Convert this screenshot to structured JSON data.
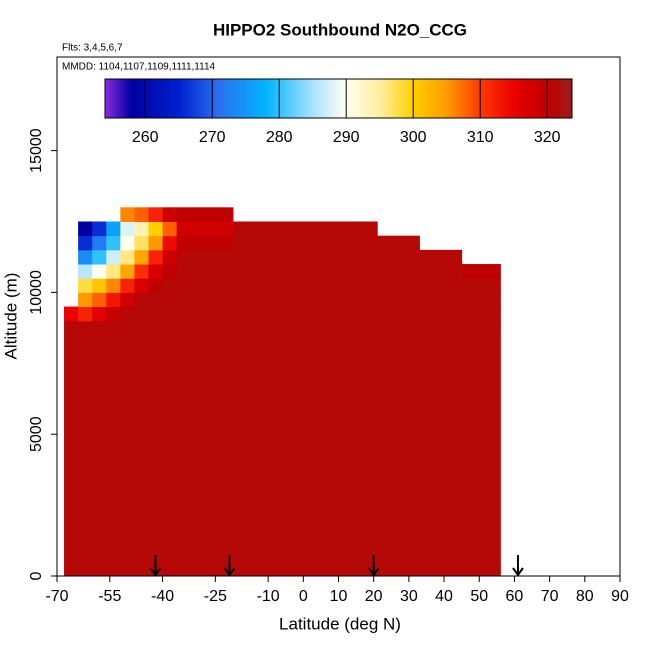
{
  "chart_data": {
    "type": "heatmap",
    "title": "HIPPO2 Southbound N2O_CCG",
    "subtitle": "Flts: 3,4,5,6,7",
    "annotation": "MMDD: 1104,1107,1109,1111,1114",
    "xlabel": "Latitude (deg N)",
    "ylabel": "Altitude (m)",
    "xlim": [
      -70,
      90
    ],
    "xticks": [
      -70,
      -55,
      -40,
      -25,
      -10,
      0,
      10,
      20,
      30,
      40,
      50,
      60,
      70,
      80,
      90
    ],
    "ylim": [
      0,
      18300
    ],
    "yticks": [
      0,
      5000,
      10000,
      15000
    ],
    "x_edges": [
      -68,
      -64,
      -60,
      -56,
      -52,
      -48,
      -44,
      -40,
      -36,
      -20,
      0,
      21,
      33,
      45,
      56
    ],
    "y_edges": [
      0,
      9000,
      9500,
      10000,
      10500,
      11000,
      11500,
      12000,
      12500,
      13000
    ],
    "z": [
      [
        321,
        321,
        321,
        321,
        321,
        321,
        321,
        321,
        321,
        321,
        321,
        321,
        321,
        321
      ],
      [
        315,
        312,
        316,
        319,
        321,
        321,
        321,
        321,
        321,
        321,
        321,
        321,
        321,
        321
      ],
      [
        null,
        305,
        308,
        313,
        318,
        321,
        321,
        321,
        321,
        321,
        321,
        321,
        321,
        321
      ],
      [
        null,
        298,
        301,
        306,
        312,
        317,
        320,
        321,
        321,
        321,
        321,
        321,
        321,
        321
      ],
      [
        null,
        286,
        290,
        296,
        304,
        311,
        317,
        320,
        321,
        321,
        321,
        321,
        321,
        320
      ],
      [
        null,
        274,
        280,
        287,
        296,
        304,
        312,
        318,
        321,
        321,
        321,
        321,
        321,
        null
      ],
      [
        null,
        266,
        272,
        280,
        290,
        297,
        305,
        314,
        320,
        321,
        321,
        321,
        null,
        null
      ],
      [
        null,
        258,
        266,
        276,
        288,
        294,
        300,
        308,
        318,
        321,
        321,
        null,
        null,
        null
      ],
      [
        null,
        null,
        null,
        null,
        306,
        308,
        312,
        318,
        320,
        null,
        null,
        null,
        null,
        null
      ]
    ],
    "arrows": [
      -42,
      -21,
      20,
      61
    ],
    "colorbar": {
      "lim": [
        254,
        323.7
      ],
      "ticks": [
        260,
        270,
        280,
        290,
        300,
        310,
        320
      ],
      "stops": [
        [
          254,
          "#8a2be2"
        ],
        [
          258,
          "#0000a0"
        ],
        [
          265,
          "#0020d0"
        ],
        [
          271,
          "#2a70f0"
        ],
        [
          278,
          "#00b4ff"
        ],
        [
          285,
          "#a8e2ff"
        ],
        [
          290,
          "#fffff0"
        ],
        [
          295,
          "#ffeea0"
        ],
        [
          300,
          "#ffd000"
        ],
        [
          305,
          "#ff9a00"
        ],
        [
          310,
          "#ff3a00"
        ],
        [
          315,
          "#ea0000"
        ],
        [
          320,
          "#c00000"
        ],
        [
          323.7,
          "#9e1c1c"
        ]
      ]
    }
  }
}
